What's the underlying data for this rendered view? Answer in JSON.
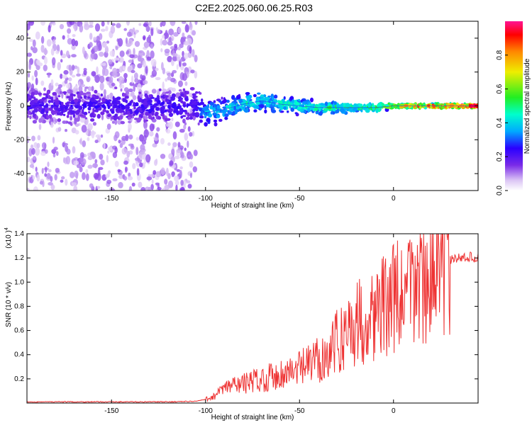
{
  "title": "C2E2.2025.060.06.25.R03",
  "colorbar": {
    "label": "Normalized spectral amplitude",
    "ticks": [
      {
        "v": 0,
        "t": "0.0"
      },
      {
        "v": 0.2,
        "t": "0.2"
      },
      {
        "v": 0.4,
        "t": "0.4"
      },
      {
        "v": 0.6,
        "t": "0.6"
      },
      {
        "v": 0.8,
        "t": "0.8"
      }
    ]
  },
  "chart_data": [
    {
      "type": "heatmap",
      "xlabel": "Height of straight line (km)",
      "ylabel": "Frequency (Hz)",
      "xlim": [
        -195,
        45
      ],
      "ylim": [
        -50,
        50
      ],
      "xticks": [
        {
          "v": -150,
          "t": "-150"
        },
        {
          "v": -100,
          "t": "-100"
        },
        {
          "v": -50,
          "t": "-50"
        },
        {
          "v": 0,
          "t": "0"
        }
      ],
      "yticks": [
        {
          "v": -40,
          "t": "-40"
        },
        {
          "v": -20,
          "t": "-20"
        },
        {
          "v": 0,
          "t": "0"
        },
        {
          "v": 20,
          "t": "20"
        },
        {
          "v": 40,
          "t": "40"
        }
      ],
      "grid": false,
      "band": [
        {
          "x": -195,
          "center": 0,
          "halfwidth": 8,
          "amp": 0.22
        },
        {
          "x": -150,
          "center": 0,
          "halfwidth": 8,
          "amp": 0.24
        },
        {
          "x": -105,
          "center": 0,
          "halfwidth": 8,
          "amp": 0.25
        },
        {
          "x": -100,
          "center": -4,
          "halfwidth": 6,
          "amp": 0.4
        },
        {
          "x": -90,
          "center": -2,
          "halfwidth": 5,
          "amp": 0.42
        },
        {
          "x": -80,
          "center": 1,
          "halfwidth": 5,
          "amp": 0.45
        },
        {
          "x": -70,
          "center": 3,
          "halfwidth": 5,
          "amp": 0.45
        },
        {
          "x": -60,
          "center": 1,
          "halfwidth": 4,
          "amp": 0.47
        },
        {
          "x": -50,
          "center": 0,
          "halfwidth": 4,
          "amp": 0.48
        },
        {
          "x": -40,
          "center": -1,
          "halfwidth": 3,
          "amp": 0.5
        },
        {
          "x": -30,
          "center": -1,
          "halfwidth": 3,
          "amp": 0.52
        },
        {
          "x": -20,
          "center": -1,
          "halfwidth": 2,
          "amp": 0.55
        },
        {
          "x": -10,
          "center": -1,
          "halfwidth": 2,
          "amp": 0.6
        },
        {
          "x": 0,
          "center": 0,
          "halfwidth": 1,
          "amp": 0.7
        },
        {
          "x": 10,
          "center": 0,
          "halfwidth": 1,
          "amp": 0.85
        },
        {
          "x": 20,
          "center": 0,
          "halfwidth": 1,
          "amp": 0.9
        },
        {
          "x": 45,
          "center": 0,
          "halfwidth": 1,
          "amp": 0.95
        }
      ],
      "diffuse_region": {
        "x": [
          -195,
          -105
        ],
        "y": [
          -50,
          50
        ],
        "amp": 0.1
      }
    },
    {
      "type": "line",
      "xlabel": "Height of straight line (km)",
      "ylabel": "SNR (10 * v/v)",
      "ymultiplier": "(x10 )",
      "ymultiplier_exp": "4",
      "xlim": [
        -195,
        45
      ],
      "ylim": [
        0,
        1.4
      ],
      "xticks": [
        {
          "v": -150,
          "t": "-150"
        },
        {
          "v": -100,
          "t": "-100"
        },
        {
          "v": -50,
          "t": "-50"
        },
        {
          "v": 0,
          "t": "0"
        }
      ],
      "yticks": [
        {
          "v": 0.2,
          "t": "0.2"
        },
        {
          "v": 0.4,
          "t": "0.4"
        },
        {
          "v": 0.6,
          "t": "0.6"
        },
        {
          "v": 0.8,
          "t": "0.8"
        },
        {
          "v": 1.0,
          "t": "1.0"
        },
        {
          "v": 1.2,
          "t": "1.2"
        },
        {
          "v": 1.4,
          "t": "1.4"
        }
      ],
      "grid": false,
      "color": "#ee3333",
      "series": [
        {
          "x": [
            -195,
            -180,
            -160,
            -140,
            -120,
            -105,
            -100,
            -95,
            -90,
            -85,
            -80,
            -75,
            -70,
            -65,
            -60,
            -55,
            -50,
            -45,
            -40,
            -35,
            -30,
            -25,
            -20,
            -15,
            -10,
            -5,
            0,
            5,
            10,
            15,
            20,
            25,
            30,
            35,
            40,
            45
          ],
          "y": [
            0.01,
            0.01,
            0.01,
            0.01,
            0.01,
            0.015,
            0.03,
            0.06,
            0.12,
            0.15,
            0.16,
            0.18,
            0.2,
            0.22,
            0.24,
            0.26,
            0.28,
            0.32,
            0.36,
            0.42,
            0.5,
            0.6,
            0.66,
            0.7,
            0.75,
            0.8,
            0.88,
            0.85,
            0.95,
            1.05,
            1.1,
            1.15,
            1.18,
            1.2,
            1.21,
            1.2
          ]
        }
      ]
    }
  ]
}
